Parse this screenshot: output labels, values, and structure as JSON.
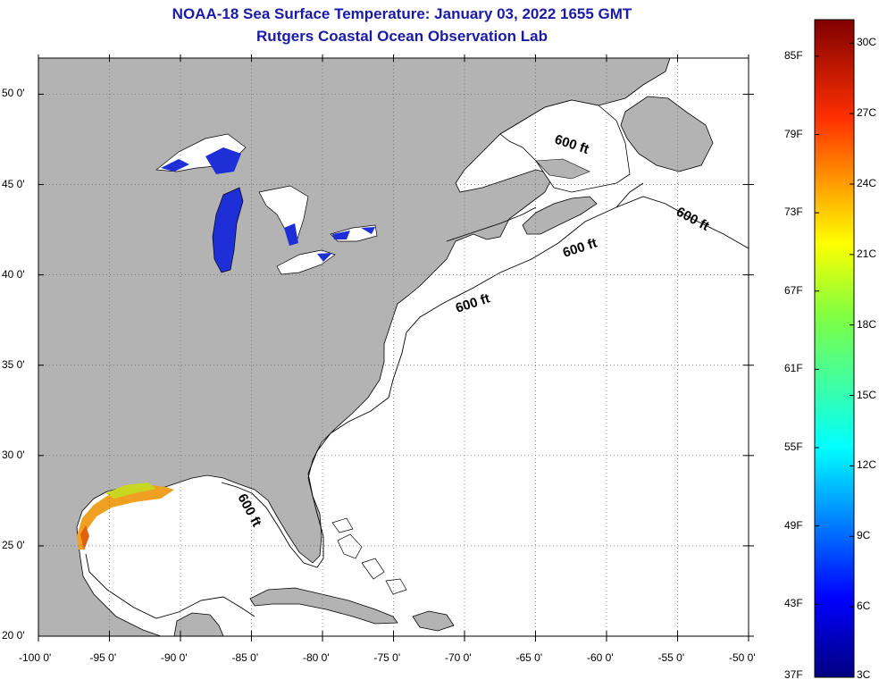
{
  "title": {
    "line1": "NOAA-18 Sea Surface Temperature:  January 03, 2022 1655 GMT",
    "line2": "Rutgers Coastal Ocean Observation Lab"
  },
  "colors": {
    "title": "#1a1aa8",
    "land": "#b3b3b3",
    "no_data": "#ffffff",
    "grid": "#666666",
    "cold_lake": "#1f2fd8",
    "warm_gulf": "#f0a020"
  },
  "map": {
    "lat_range": [
      20,
      52
    ],
    "lon_range": [
      -100,
      -50
    ],
    "lat_labels": [
      "50 0'",
      "45 0'",
      "40 0'",
      "35 0'",
      "30 0'",
      "25 0'",
      "20 0'"
    ],
    "lon_labels": [
      "-100 0'",
      "-95 0'",
      "-90 0'",
      "-85 0'",
      "-80 0'",
      "-75 0'",
      "-70 0'",
      "-65 0'",
      "-60 0'",
      "-55 0'",
      "-50 0'"
    ],
    "contour_labels": [
      "600 ft",
      "600 ft",
      "600 ft",
      "600 ft",
      "600 ft"
    ]
  },
  "colorbar": {
    "f_labels": [
      "85F",
      "79F",
      "73F",
      "67F",
      "61F",
      "55F",
      "49F",
      "43F",
      "37F"
    ],
    "c_labels": [
      "30C",
      "27C",
      "24C",
      "21C",
      "18C",
      "15C",
      "12C",
      "9C",
      "6C",
      "3C"
    ],
    "range_c": [
      3,
      31
    ]
  }
}
